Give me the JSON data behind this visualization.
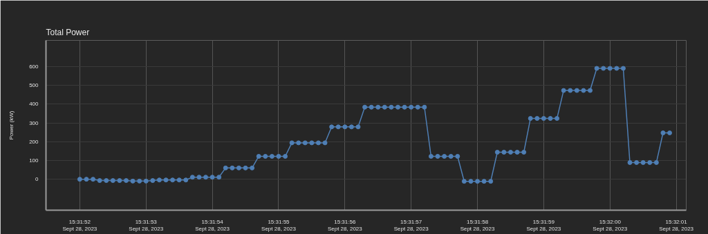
{
  "chart_data": {
    "type": "line",
    "title": "Total Power",
    "ylabel": "Power (kW)",
    "x": [
      "2023-09-28T15:31:52.000",
      "2023-09-28T15:31:52.100",
      "2023-09-28T15:31:52.200",
      "2023-09-28T15:31:52.300",
      "2023-09-28T15:31:52.400",
      "2023-09-28T15:31:52.500",
      "2023-09-28T15:31:52.600",
      "2023-09-28T15:31:52.700",
      "2023-09-28T15:31:52.800",
      "2023-09-28T15:31:52.900",
      "2023-09-28T15:31:53.000",
      "2023-09-28T15:31:53.100",
      "2023-09-28T15:31:53.200",
      "2023-09-28T15:31:53.300",
      "2023-09-28T15:31:53.400",
      "2023-09-28T15:31:53.500",
      "2023-09-28T15:31:53.600",
      "2023-09-28T15:31:53.700",
      "2023-09-28T15:31:53.800",
      "2023-09-28T15:31:53.900",
      "2023-09-28T15:31:54.000",
      "2023-09-28T15:31:54.100",
      "2023-09-28T15:31:54.200",
      "2023-09-28T15:31:54.300",
      "2023-09-28T15:31:54.400",
      "2023-09-28T15:31:54.500",
      "2023-09-28T15:31:54.600",
      "2023-09-28T15:31:54.700",
      "2023-09-28T15:31:54.800",
      "2023-09-28T15:31:54.900",
      "2023-09-28T15:31:55.000",
      "2023-09-28T15:31:55.100",
      "2023-09-28T15:31:55.200",
      "2023-09-28T15:31:55.300",
      "2023-09-28T15:31:55.400",
      "2023-09-28T15:31:55.500",
      "2023-09-28T15:31:55.600",
      "2023-09-28T15:31:55.700",
      "2023-09-28T15:31:55.800",
      "2023-09-28T15:31:55.900",
      "2023-09-28T15:31:56.000",
      "2023-09-28T15:31:56.100",
      "2023-09-28T15:31:56.200",
      "2023-09-28T15:31:56.300",
      "2023-09-28T15:31:56.400",
      "2023-09-28T15:31:56.500",
      "2023-09-28T15:31:56.600",
      "2023-09-28T15:31:56.700",
      "2023-09-28T15:31:56.800",
      "2023-09-28T15:31:56.900",
      "2023-09-28T15:31:57.000",
      "2023-09-28T15:31:57.100",
      "2023-09-28T15:31:57.200",
      "2023-09-28T15:31:57.300",
      "2023-09-28T15:31:57.400",
      "2023-09-28T15:31:57.500",
      "2023-09-28T15:31:57.600",
      "2023-09-28T15:31:57.700",
      "2023-09-28T15:31:57.800",
      "2023-09-28T15:31:57.900",
      "2023-09-28T15:31:58.000",
      "2023-09-28T15:31:58.100",
      "2023-09-28T15:31:58.200",
      "2023-09-28T15:31:58.300",
      "2023-09-28T15:31:58.400",
      "2023-09-28T15:31:58.500",
      "2023-09-28T15:31:58.600",
      "2023-09-28T15:31:58.700",
      "2023-09-28T15:31:58.800",
      "2023-09-28T15:31:58.900",
      "2023-09-28T15:31:59.000",
      "2023-09-28T15:31:59.100",
      "2023-09-28T15:31:59.200",
      "2023-09-28T15:31:59.300",
      "2023-09-28T15:31:59.400",
      "2023-09-28T15:31:59.500",
      "2023-09-28T15:31:59.600",
      "2023-09-28T15:31:59.700",
      "2023-09-28T15:31:59.800",
      "2023-09-28T15:31:59.900",
      "2023-09-28T15:32:00.000",
      "2023-09-28T15:32:00.100",
      "2023-09-28T15:32:00.200",
      "2023-09-28T15:32:00.300",
      "2023-09-28T15:32:00.400",
      "2023-09-28T15:32:00.500",
      "2023-09-28T15:32:00.600",
      "2023-09-28T15:32:00.700",
      "2023-09-28T15:32:00.800",
      "2023-09-28T15:32:00.900"
    ],
    "series": [
      {
        "color": "#4f7fb5",
        "values": [
          0,
          0,
          0,
          -7,
          -7,
          -7,
          -7,
          -7,
          -10,
          -10,
          -10,
          -7,
          -4,
          -4,
          -4,
          -4,
          -4,
          11,
          11,
          11,
          11,
          11,
          60,
          60,
          60,
          60,
          60,
          122,
          122,
          122,
          122,
          122,
          194,
          194,
          194,
          194,
          194,
          194,
          279,
          279,
          279,
          279,
          279,
          384,
          384,
          384,
          384,
          384,
          384,
          384,
          384,
          384,
          384,
          122,
          122,
          122,
          122,
          122,
          -11,
          -11,
          -11,
          -11,
          -11,
          144,
          144,
          144,
          144,
          144,
          324,
          324,
          324,
          324,
          324,
          473,
          473,
          473,
          473,
          473,
          591,
          591,
          591,
          591,
          591,
          89,
          89,
          89,
          89,
          89,
          247,
          247
        ]
      }
    ],
    "xlim": [
      "2023-09-28T15:31:51.490",
      "2023-09-28T15:32:01.150"
    ],
    "xticks": [
      {
        "value": "2023-09-28T15:31:52",
        "label": "15:31:52\nSept 28, 2023"
      },
      {
        "value": "2023-09-28T15:31:53",
        "label": "15:31:53\nSept 28, 2023"
      },
      {
        "value": "2023-09-28T15:31:54",
        "label": "15:31:54\nSept 28, 2023"
      },
      {
        "value": "2023-09-28T15:31:55",
        "label": "15:31:55\nSept 28, 2023"
      },
      {
        "value": "2023-09-28T15:31:56",
        "label": "15:31:56\nSept 28, 2023"
      },
      {
        "value": "2023-09-28T15:31:57",
        "label": "15:31:57\nSept 28, 2023"
      },
      {
        "value": "2023-09-28T15:31:58",
        "label": "15:31:58\nSept 28, 2023"
      },
      {
        "value": "2023-09-28T15:31:59",
        "label": "15:31:59\nSept 28, 2023"
      },
      {
        "value": "2023-09-28T15:32:00",
        "label": "15:32:00\nSept 28, 2023"
      },
      {
        "value": "2023-09-28T15:32:01",
        "label": "15:32:01\nSept 28, 2023"
      }
    ],
    "ylim": [
      -165,
      740
    ],
    "yticks": [
      0,
      100,
      200,
      300,
      400,
      500,
      600
    ],
    "grid": true,
    "marker": "circle",
    "line_style": "solid"
  }
}
